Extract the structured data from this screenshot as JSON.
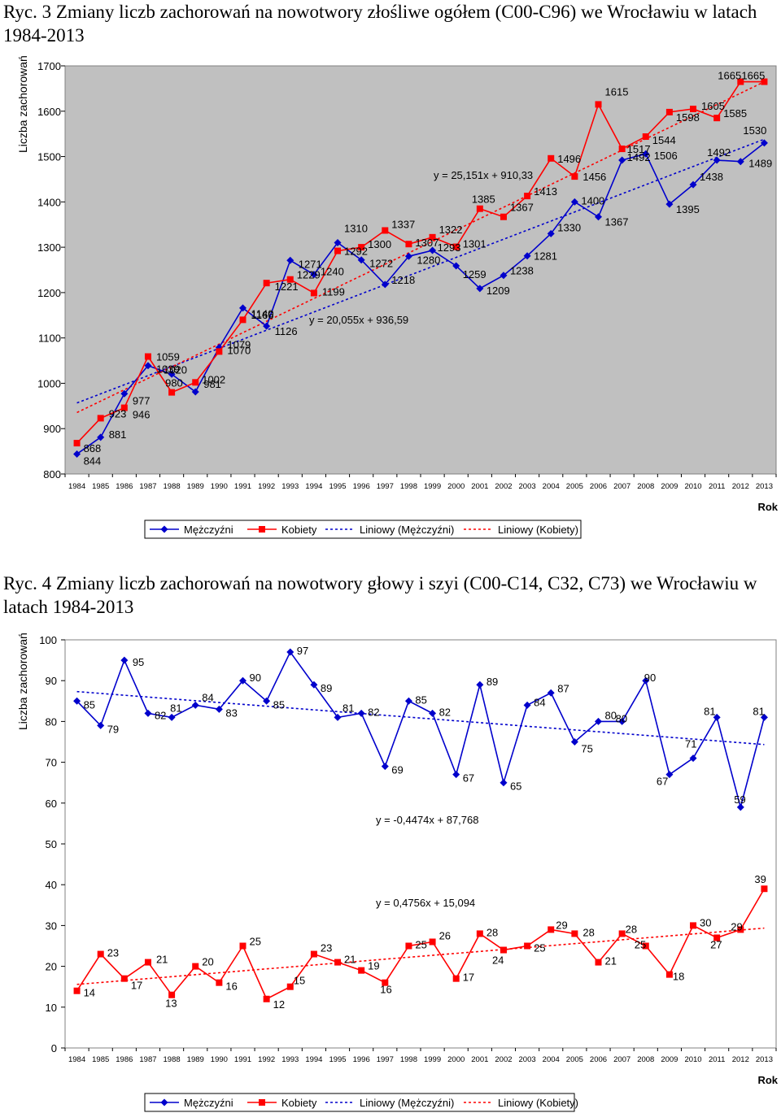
{
  "chart_data": [
    {
      "type": "line",
      "title": "Ryc. 3 Zmiany liczb zachorowań na nowotwory złośliwe ogółem (C00-C96) we Wrocławiu w latach 1984-2013",
      "ylabel": "Liczba zachorowań",
      "xlabel": "Rok",
      "ylim": [
        800,
        1700
      ],
      "yticks": [
        "800",
        "900",
        "1000",
        "1100",
        "1200",
        "1300",
        "1400",
        "1500",
        "1600",
        "1700"
      ],
      "ytick_values": [
        800,
        900,
        1000,
        1100,
        1200,
        1300,
        1400,
        1500,
        1600,
        1700
      ],
      "categories": [
        "1984",
        "1985",
        "1986",
        "1987",
        "1988",
        "1989",
        "1990",
        "1991",
        "1992",
        "1993",
        "1994",
        "1995",
        "1996",
        "1997",
        "1998",
        "1999",
        "2000",
        "2001",
        "2002",
        "2003",
        "2004",
        "2005",
        "2006",
        "2007",
        "2008",
        "2009",
        "2010",
        "2011",
        "2012",
        "2013"
      ],
      "grid": false,
      "legend_position": "bottom",
      "background": "#c0c0c0",
      "series": [
        {
          "name": "Mężczyźni",
          "color": "#0000cc",
          "marker": "diamond",
          "values": [
            844,
            881,
            977,
            1039,
            1020,
            981,
            1079,
            1166,
            1126,
            1271,
            1240,
            1310,
            1272,
            1218,
            1280,
            1293,
            1259,
            1209,
            1238,
            1281,
            1330,
            1400,
            1367,
            1492,
            1506,
            1395,
            1438,
            1492,
            1489,
            1530
          ]
        },
        {
          "name": "Kobiety",
          "color": "#ff0000",
          "marker": "square",
          "values": [
            868,
            923,
            946,
            1059,
            980,
            1002,
            1070,
            1140,
            1221,
            1229,
            1199,
            1292,
            1300,
            1337,
            1307,
            1322,
            1301,
            1385,
            1367,
            1413,
            1496,
            1456,
            1615,
            1517,
            1544,
            1598,
            1605,
            1585,
            1665,
            1665
          ]
        }
      ],
      "trendlines": [
        {
          "name": "Liniowy (Mężczyźni)",
          "color": "#0000cc",
          "slope": 20.055,
          "intercept": 936.59,
          "equation": "y = 20,055x + 936,59"
        },
        {
          "name": "Liniowy (Kobiety)",
          "color": "#ff0000",
          "slope": 25.151,
          "intercept": 910.33,
          "equation": "y = 25,151x + 910,33"
        }
      ]
    },
    {
      "type": "line",
      "title": "Ryc. 4 Zmiany liczb zachorowań na nowotwory głowy i szyi (C00-C14, C32, C73) we Wrocławiu w latach 1984-2013",
      "ylabel": "Liczba zachorowań",
      "xlabel": "Rok",
      "ylim": [
        0,
        100
      ],
      "yticks": [
        "0",
        "10",
        "20",
        "30",
        "40",
        "50",
        "60",
        "70",
        "80",
        "90",
        "100"
      ],
      "ytick_values": [
        0,
        10,
        20,
        30,
        40,
        50,
        60,
        70,
        80,
        90,
        100
      ],
      "categories": [
        "1984",
        "1985",
        "1986",
        "1987",
        "1988",
        "1989",
        "1990",
        "1991",
        "1992",
        "1993",
        "1994",
        "1995",
        "1996",
        "1997",
        "1998",
        "1999",
        "2000",
        "2001",
        "2002",
        "2003",
        "2004",
        "2005",
        "2006",
        "2007",
        "2008",
        "2009",
        "2010",
        "2011",
        "2012",
        "2013"
      ],
      "grid": false,
      "legend_position": "bottom",
      "background": "#ffffff",
      "series": [
        {
          "name": "Mężczyźni",
          "color": "#0000cc",
          "marker": "diamond",
          "values": [
            85,
            79,
            95,
            82,
            81,
            84,
            83,
            90,
            85,
            97,
            89,
            81,
            82,
            69,
            85,
            82,
            67,
            89,
            65,
            84,
            87,
            75,
            80,
            80,
            90,
            67,
            71,
            81,
            59,
            81
          ]
        },
        {
          "name": "Kobiety",
          "color": "#ff0000",
          "marker": "square",
          "values": [
            14,
            23,
            17,
            21,
            13,
            20,
            16,
            25,
            12,
            15,
            23,
            21,
            19,
            16,
            25,
            26,
            17,
            28,
            24,
            25,
            29,
            28,
            21,
            28,
            25,
            18,
            30,
            27,
            29,
            39
          ]
        }
      ],
      "trendlines": [
        {
          "name": "Liniowy (Mężczyźni)",
          "color": "#0000cc",
          "slope": -0.4474,
          "intercept": 87.768,
          "equation": "y = -0,4474x + 87,768"
        },
        {
          "name": "Liniowy (Kobiety)",
          "color": "#ff0000",
          "slope": 0.4756,
          "intercept": 15.094,
          "equation": "y = 0,4756x + 15,094"
        }
      ]
    }
  ]
}
